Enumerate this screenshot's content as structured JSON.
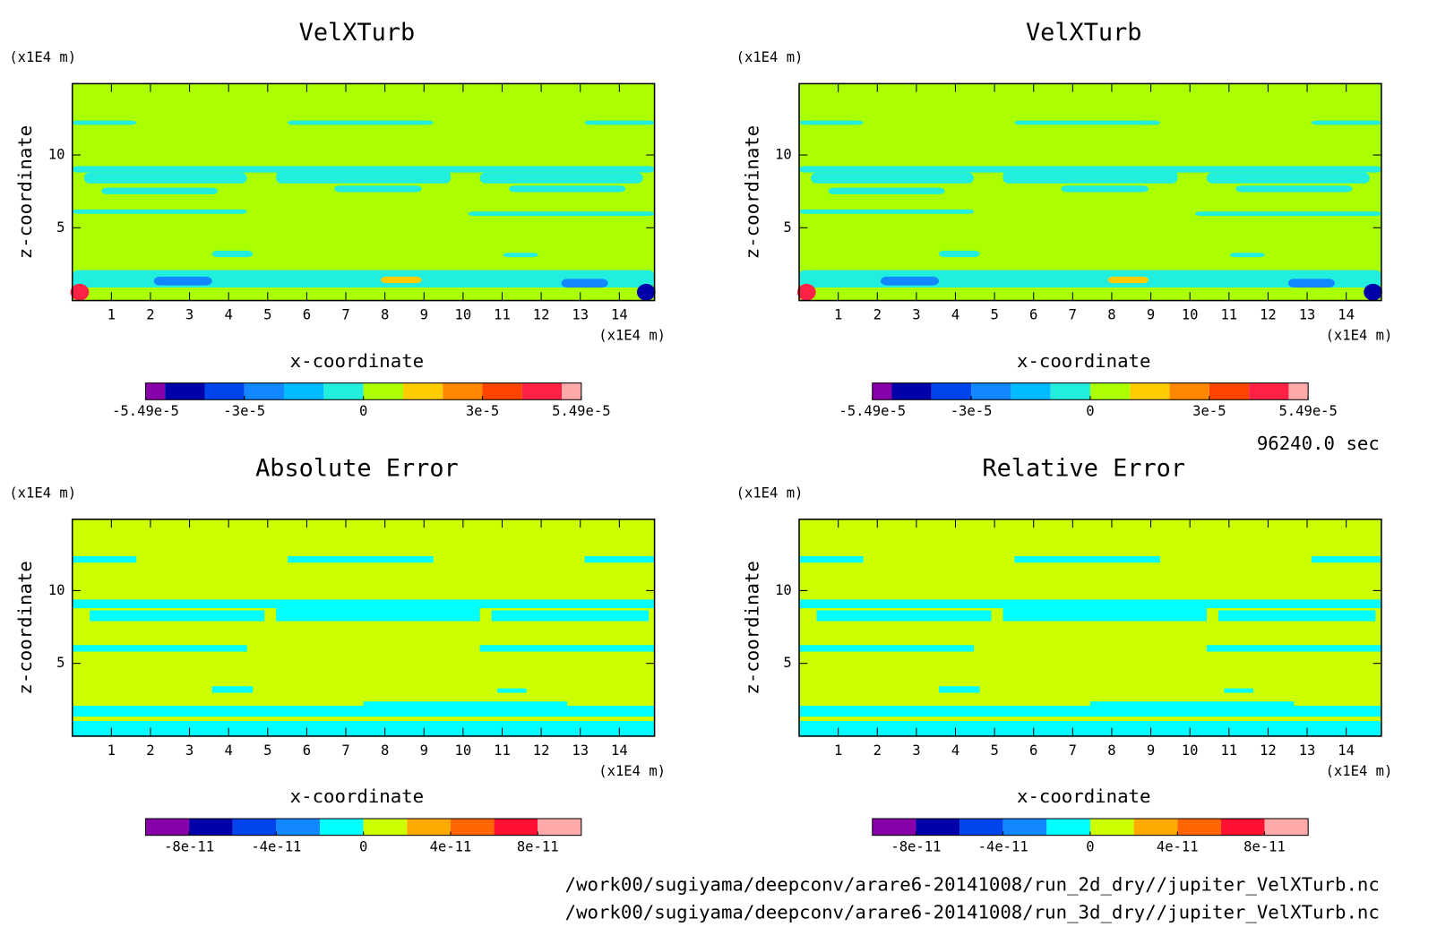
{
  "chart_data": [
    {
      "type": "contour",
      "title": "VelXTurb",
      "xlabel": "x-coordinate",
      "ylabel": "z-coordinate",
      "x_unit": "(x1E4 m)",
      "y_unit": "(x1E4 m)",
      "xlim": [
        0,
        14.9
      ],
      "ylim": [
        0,
        14.9
      ],
      "xticks": [
        1,
        2,
        3,
        4,
        5,
        6,
        7,
        8,
        9,
        10,
        11,
        12,
        13,
        14
      ],
      "yticks": [
        5,
        10
      ],
      "colorbar": {
        "clim": [
          -5.49e-05,
          5.49e-05
        ],
        "levels": [
          -5e-05,
          -4e-05,
          -3e-05,
          -2e-05,
          -1e-05,
          0,
          1e-05,
          2e-05,
          3e-05,
          4e-05,
          5e-05
        ],
        "colors": [
          "#8800aa",
          "#0000aa",
          "#0044ee",
          "#1188ff",
          "#00bbff",
          "#22eedd",
          "#aaff00",
          "#ffcc00",
          "#ff8800",
          "#ff4400",
          "#ff2244",
          "#ffaaaa"
        ],
        "ticks": [
          {
            "value": -5.49e-05,
            "label": "-5.49e-5"
          },
          {
            "value": -3e-05,
            "label": "-3e-5"
          },
          0,
          {
            "value": 3e-05,
            "label": "3e-5"
          },
          {
            "value": 5.49e-05,
            "label": "5.49e-5"
          }
        ]
      }
    },
    {
      "type": "contour",
      "title": "VelXTurb",
      "xlabel": "x-coordinate",
      "ylabel": "z-coordinate",
      "x_unit": "(x1E4 m)",
      "y_unit": "(x1E4 m)",
      "xlim": [
        0,
        14.9
      ],
      "ylim": [
        0,
        14.9
      ],
      "xticks": [
        1,
        2,
        3,
        4,
        5,
        6,
        7,
        8,
        9,
        10,
        11,
        12,
        13,
        14
      ],
      "yticks": [
        5,
        10
      ],
      "colorbar": {
        "clim": [
          -5.49e-05,
          5.49e-05
        ],
        "levels": [
          -5e-05,
          -4e-05,
          -3e-05,
          -2e-05,
          -1e-05,
          0,
          1e-05,
          2e-05,
          3e-05,
          4e-05,
          5e-05
        ],
        "colors": [
          "#8800aa",
          "#0000aa",
          "#0044ee",
          "#1188ff",
          "#00bbff",
          "#22eedd",
          "#aaff00",
          "#ffcc00",
          "#ff8800",
          "#ff4400",
          "#ff2244",
          "#ffaaaa"
        ],
        "ticks": [
          {
            "value": -5.49e-05,
            "label": "-5.49e-5"
          },
          {
            "value": -3e-05,
            "label": "-3e-5"
          },
          0,
          {
            "value": 3e-05,
            "label": "3e-5"
          },
          {
            "value": 5.49e-05,
            "label": "5.49e-5"
          }
        ]
      }
    },
    {
      "type": "contour",
      "title": "Absolute Error",
      "xlabel": "x-coordinate",
      "ylabel": "z-coordinate",
      "x_unit": "(x1E4 m)",
      "y_unit": "(x1E4 m)",
      "xlim": [
        0,
        14.9
      ],
      "ylim": [
        0,
        14.9
      ],
      "xticks": [
        1,
        2,
        3,
        4,
        5,
        6,
        7,
        8,
        9,
        10,
        11,
        12,
        13,
        14
      ],
      "yticks": [
        5,
        10
      ],
      "colorbar": {
        "clim": [
          -1e-10,
          1e-10
        ],
        "levels": [
          -1e-10,
          -8e-11,
          -6e-11,
          -4e-11,
          -2e-11,
          0,
          2e-11,
          4e-11,
          6e-11,
          8e-11,
          1e-10
        ],
        "colors": [
          "#8800aa",
          "#0000aa",
          "#0044ee",
          "#1188ff",
          "#00ffff",
          "#ccff00",
          "#ffaa00",
          "#ff6600",
          "#ff1133",
          "#ffaaaa"
        ],
        "ticks": [
          -8e-11,
          -4e-11,
          0,
          4e-11,
          8e-11
        ]
      }
    },
    {
      "type": "contour",
      "title": "Relative Error",
      "xlabel": "x-coordinate",
      "ylabel": "z-coordinate",
      "x_unit": "(x1E4 m)",
      "y_unit": "(x1E4 m)",
      "xlim": [
        0,
        14.9
      ],
      "ylim": [
        0,
        14.9
      ],
      "xticks": [
        1,
        2,
        3,
        4,
        5,
        6,
        7,
        8,
        9,
        10,
        11,
        12,
        13,
        14
      ],
      "yticks": [
        5,
        10
      ],
      "colorbar": {
        "clim": [
          -1e-10,
          1e-10
        ],
        "levels": [
          -1e-10,
          -8e-11,
          -6e-11,
          -4e-11,
          -2e-11,
          0,
          2e-11,
          4e-11,
          6e-11,
          8e-11,
          1e-10
        ],
        "colors": [
          "#8800aa",
          "#0000aa",
          "#0044ee",
          "#1188ff",
          "#00ffff",
          "#ccff00",
          "#ffaa00",
          "#ff6600",
          "#ff1133",
          "#ffaaaa"
        ],
        "ticks": [
          -8e-11,
          -4e-11,
          0,
          4e-11,
          8e-11
        ]
      }
    }
  ],
  "time_label": "96240.0 sec",
  "files": [
    "/work00/sugiyama/deepconv/arare6-20141008/run_2d_dry//jupiter_VelXTurb.nc",
    "/work00/sugiyama/deepconv/arare6-20141008/run_3d_dry//jupiter_VelXTurb.nc"
  ]
}
